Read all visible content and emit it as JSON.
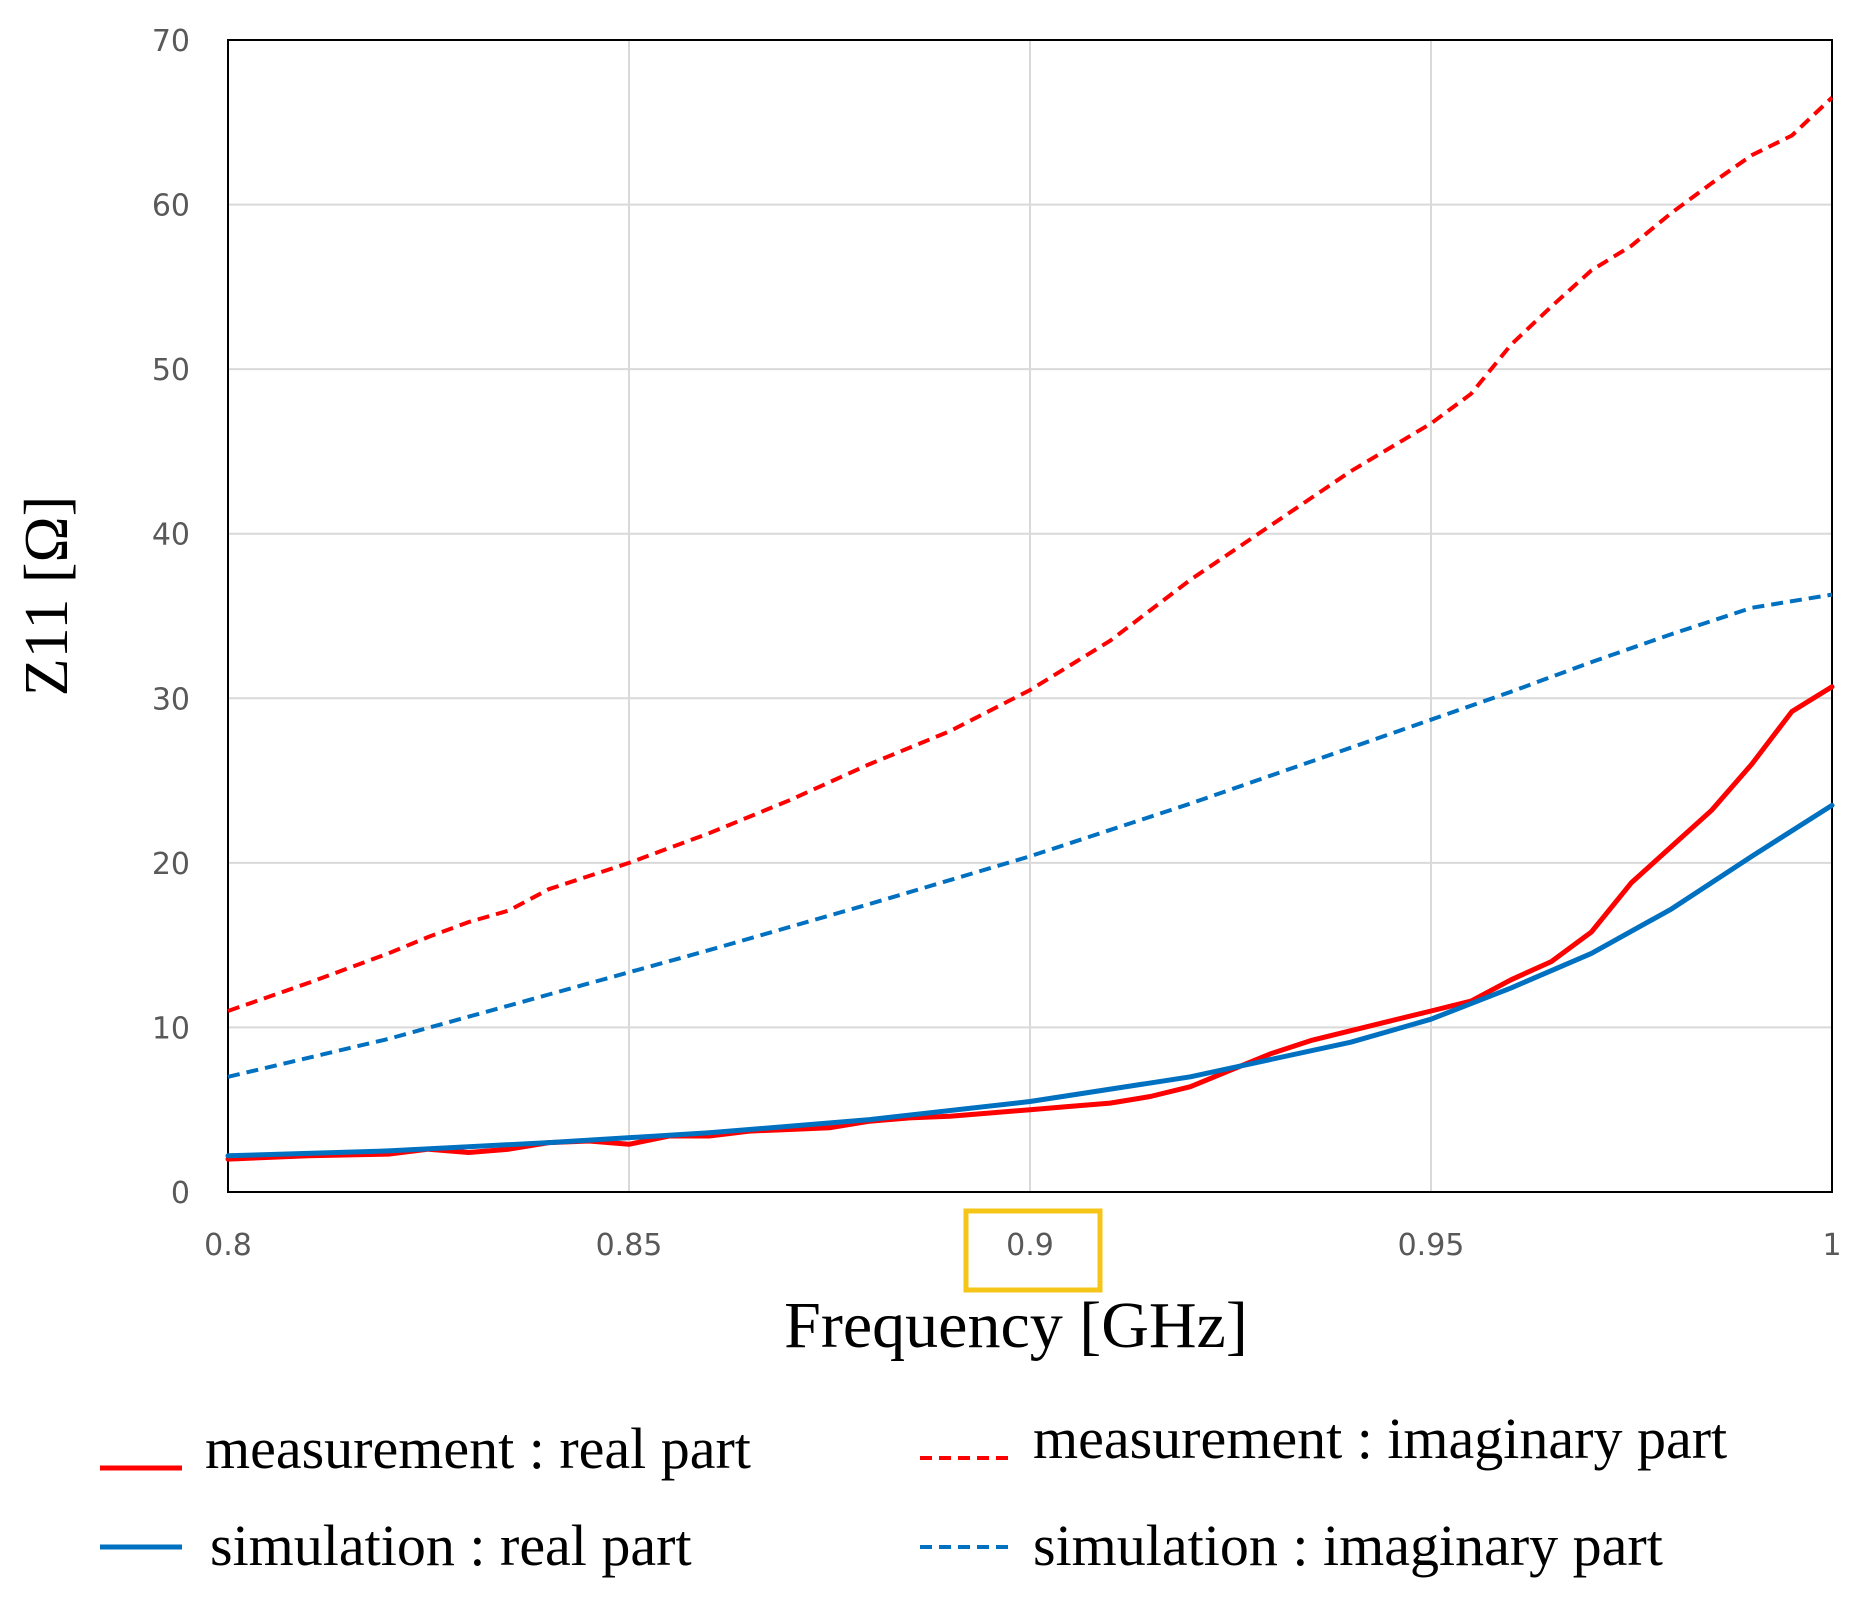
{
  "chart_data": {
    "type": "line",
    "xlabel": "Frequency [GHz]",
    "ylabel": "Z11 [Ω]",
    "xlim": [
      0.8,
      1.0
    ],
    "ylim": [
      0,
      70
    ],
    "grid": true,
    "x_ticks": [
      0.8,
      0.85,
      0.9,
      0.95,
      1.0
    ],
    "x_tick_labels": [
      "0.8",
      "0.85",
      "0.9",
      "0.95",
      "1"
    ],
    "y_ticks": [
      0,
      10,
      20,
      30,
      40,
      50,
      60,
      70
    ],
    "y_tick_labels": [
      "0",
      "10",
      "20",
      "30",
      "40",
      "50",
      "60",
      "70"
    ],
    "highlighted_tick": "0.9",
    "highlight_color": "#f5c518",
    "legend_position": "bottom",
    "series": [
      {
        "name": "measurement : real part",
        "color": "#ff0000",
        "dash": "solid",
        "points": [
          [
            0.8,
            2.0
          ],
          [
            0.81,
            2.2
          ],
          [
            0.82,
            2.3
          ],
          [
            0.825,
            2.6
          ],
          [
            0.83,
            2.4
          ],
          [
            0.835,
            2.6
          ],
          [
            0.84,
            3.0
          ],
          [
            0.845,
            3.1
          ],
          [
            0.85,
            2.9
          ],
          [
            0.855,
            3.4
          ],
          [
            0.86,
            3.4
          ],
          [
            0.865,
            3.7
          ],
          [
            0.87,
            3.8
          ],
          [
            0.875,
            3.9
          ],
          [
            0.88,
            4.3
          ],
          [
            0.885,
            4.5
          ],
          [
            0.89,
            4.6
          ],
          [
            0.895,
            4.8
          ],
          [
            0.9,
            5.0
          ],
          [
            0.905,
            5.2
          ],
          [
            0.91,
            5.4
          ],
          [
            0.915,
            5.8
          ],
          [
            0.92,
            6.4
          ],
          [
            0.925,
            7.4
          ],
          [
            0.93,
            8.4
          ],
          [
            0.935,
            9.2
          ],
          [
            0.94,
            9.8
          ],
          [
            0.945,
            10.4
          ],
          [
            0.95,
            11.0
          ],
          [
            0.955,
            11.6
          ],
          [
            0.96,
            12.9
          ],
          [
            0.965,
            14.0
          ],
          [
            0.97,
            15.8
          ],
          [
            0.975,
            18.8
          ],
          [
            0.98,
            21.0
          ],
          [
            0.985,
            23.2
          ],
          [
            0.99,
            26.0
          ],
          [
            0.995,
            29.2
          ],
          [
            1.0,
            30.7
          ]
        ]
      },
      {
        "name": "measurement : imaginary part",
        "color": "#ff0000",
        "dash": "dashed",
        "points": [
          [
            0.8,
            11.0
          ],
          [
            0.81,
            12.7
          ],
          [
            0.82,
            14.5
          ],
          [
            0.825,
            15.5
          ],
          [
            0.83,
            16.4
          ],
          [
            0.835,
            17.1
          ],
          [
            0.84,
            18.4
          ],
          [
            0.85,
            20.0
          ],
          [
            0.86,
            21.8
          ],
          [
            0.87,
            23.8
          ],
          [
            0.88,
            26.0
          ],
          [
            0.89,
            28.0
          ],
          [
            0.9,
            30.5
          ],
          [
            0.91,
            33.5
          ],
          [
            0.92,
            37.2
          ],
          [
            0.93,
            40.5
          ],
          [
            0.94,
            43.8
          ],
          [
            0.95,
            46.7
          ],
          [
            0.955,
            48.5
          ],
          [
            0.96,
            51.5
          ],
          [
            0.965,
            53.8
          ],
          [
            0.97,
            56.0
          ],
          [
            0.975,
            57.5
          ],
          [
            0.98,
            59.5
          ],
          [
            0.985,
            61.3
          ],
          [
            0.99,
            63.0
          ],
          [
            0.995,
            64.2
          ],
          [
            1.0,
            66.5
          ]
        ]
      },
      {
        "name": "simulation : real part",
        "color": "#0070c0",
        "dash": "solid",
        "points": [
          [
            0.8,
            2.2
          ],
          [
            0.82,
            2.5
          ],
          [
            0.84,
            3.0
          ],
          [
            0.86,
            3.6
          ],
          [
            0.88,
            4.4
          ],
          [
            0.9,
            5.5
          ],
          [
            0.92,
            7.0
          ],
          [
            0.94,
            9.1
          ],
          [
            0.95,
            10.5
          ],
          [
            0.96,
            12.4
          ],
          [
            0.97,
            14.5
          ],
          [
            0.98,
            17.2
          ],
          [
            0.99,
            20.4
          ],
          [
            1.0,
            23.5
          ]
        ]
      },
      {
        "name": "simulation : imaginary part",
        "color": "#0070c0",
        "dash": "dashed",
        "points": [
          [
            0.8,
            7.0
          ],
          [
            0.82,
            9.3
          ],
          [
            0.84,
            12.0
          ],
          [
            0.86,
            14.7
          ],
          [
            0.88,
            17.5
          ],
          [
            0.9,
            20.4
          ],
          [
            0.92,
            23.6
          ],
          [
            0.94,
            27.0
          ],
          [
            0.95,
            28.7
          ],
          [
            0.96,
            30.4
          ],
          [
            0.97,
            32.2
          ],
          [
            0.98,
            33.9
          ],
          [
            0.99,
            35.5
          ],
          [
            1.0,
            36.3
          ]
        ]
      }
    ],
    "legend": [
      {
        "label": "measurement : real part",
        "series": 0
      },
      {
        "label": "measurement : imaginary part",
        "series": 1
      },
      {
        "label": "simulation : real part",
        "series": 2
      },
      {
        "label": "simulation : imaginary part",
        "series": 3
      }
    ]
  }
}
